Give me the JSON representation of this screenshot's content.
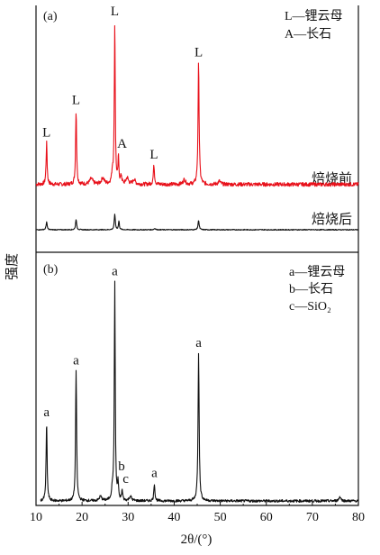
{
  "chart_data": {
    "type": "line",
    "x_axis": {
      "label": "2θ/(°)",
      "range": [
        10,
        80
      ],
      "ticks": [
        10,
        20,
        30,
        40,
        50,
        60,
        70,
        80
      ]
    },
    "y_axis_label": "强度",
    "panels": [
      {
        "id": "a",
        "panel_label": "(a)",
        "legend": [
          "L—锂云母",
          "A—长石"
        ],
        "series": [
          {
            "name": "焙烧前",
            "color": "#e8101a",
            "baseline": 0.03,
            "noise": 0.012,
            "peaks": [
              {
                "x": 12.3,
                "h": 0.26,
                "w": 0.13
              },
              {
                "x": 18.7,
                "h": 0.46,
                "w": 0.13
              },
              {
                "x": 22.0,
                "h": 0.035,
                "w": 0.4
              },
              {
                "x": 24.5,
                "h": 0.04,
                "w": 0.35
              },
              {
                "x": 26.6,
                "h": 0.07,
                "w": 0.2
              },
              {
                "x": 27.1,
                "h": 1.0,
                "w": 0.12
              },
              {
                "x": 27.9,
                "h": 0.16,
                "w": 0.12
              },
              {
                "x": 28.5,
                "h": 0.05,
                "w": 0.15
              },
              {
                "x": 29.8,
                "h": 0.04,
                "w": 0.3
              },
              {
                "x": 31.3,
                "h": 0.03,
                "w": 0.3
              },
              {
                "x": 35.6,
                "h": 0.12,
                "w": 0.15
              },
              {
                "x": 42.2,
                "h": 0.03,
                "w": 0.3
              },
              {
                "x": 45.3,
                "h": 0.76,
                "w": 0.14
              },
              {
                "x": 49.8,
                "h": 0.02,
                "w": 0.3
              }
            ],
            "peak_labels": [
              {
                "x": 12.3,
                "text": "L"
              },
              {
                "x": 18.7,
                "text": "L"
              },
              {
                "x": 27.1,
                "text": "L"
              },
              {
                "x": 27.9,
                "text": "A"
              },
              {
                "x": 35.6,
                "text": "L"
              },
              {
                "x": 45.3,
                "text": "L"
              }
            ]
          },
          {
            "name": "焙烧后",
            "color": "#111111",
            "baseline": 0.0,
            "noise": 0.004,
            "peaks": [
              {
                "x": 12.3,
                "h": 0.075,
                "w": 0.13
              },
              {
                "x": 18.7,
                "h": 0.1,
                "w": 0.13
              },
              {
                "x": 27.1,
                "h": 0.15,
                "w": 0.13
              },
              {
                "x": 28.0,
                "h": 0.08,
                "w": 0.12
              },
              {
                "x": 35.8,
                "h": 0.012,
                "w": 0.2
              },
              {
                "x": 45.3,
                "h": 0.09,
                "w": 0.14
              }
            ],
            "peak_labels": []
          }
        ]
      },
      {
        "id": "b",
        "panel_label": "(b)",
        "legend": [
          "a—锂云母",
          "b—长石",
          "c—SiO₂"
        ],
        "series": [
          {
            "name": "",
            "color": "#111111",
            "baseline": 0.0,
            "noise": 0.006,
            "peaks": [
              {
                "x": 12.3,
                "h": 0.36,
                "w": 0.13
              },
              {
                "x": 18.7,
                "h": 0.6,
                "w": 0.13
              },
              {
                "x": 24.0,
                "h": 0.02,
                "w": 0.3
              },
              {
                "x": 26.6,
                "h": 0.05,
                "w": 0.2
              },
              {
                "x": 27.1,
                "h": 1.0,
                "w": 0.12
              },
              {
                "x": 27.8,
                "h": 0.08,
                "w": 0.12
              },
              {
                "x": 28.7,
                "h": 0.045,
                "w": 0.14
              },
              {
                "x": 30.5,
                "h": 0.02,
                "w": 0.3
              },
              {
                "x": 35.7,
                "h": 0.08,
                "w": 0.14
              },
              {
                "x": 45.3,
                "h": 0.68,
                "w": 0.14
              },
              {
                "x": 76.0,
                "h": 0.02,
                "w": 0.25
              }
            ],
            "peak_labels": [
              {
                "x": 12.3,
                "text": "a"
              },
              {
                "x": 18.7,
                "text": "a"
              },
              {
                "x": 27.1,
                "text": "a"
              },
              {
                "x": 27.8,
                "text": "b"
              },
              {
                "x": 28.7,
                "text": "c"
              },
              {
                "x": 35.7,
                "text": "a"
              },
              {
                "x": 45.3,
                "text": "a"
              }
            ]
          }
        ]
      }
    ]
  }
}
